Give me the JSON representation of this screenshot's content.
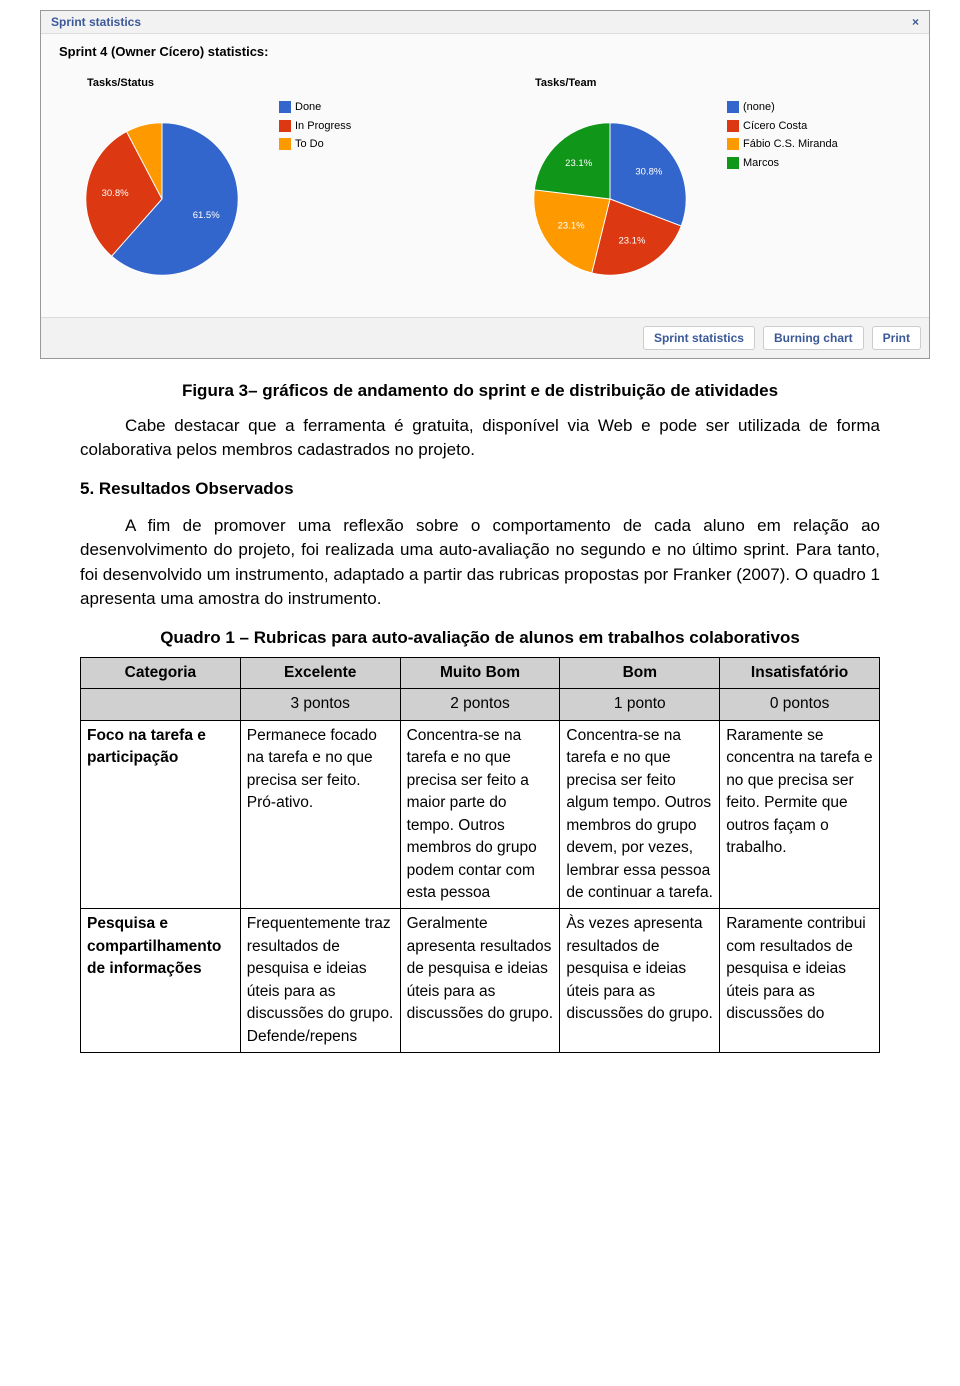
{
  "screenshot": {
    "header_title": "Sprint statistics",
    "close_glyph": "×",
    "subtitle": "Sprint 4 (Owner Cícero) statistics:",
    "chart1": {
      "title": "Tasks/Status",
      "type": "pie",
      "slices": [
        {
          "label": "Done",
          "value": 61.5,
          "color": "#3366cc",
          "text": "61.5%"
        },
        {
          "label": "In Progress",
          "value": 30.8,
          "color": "#dc3912",
          "text": "30.8%"
        },
        {
          "label": "To Do",
          "value": 7.7,
          "color": "#ff9900",
          "text": ""
        }
      ],
      "legend": [
        {
          "label": "Done",
          "color": "#3366cc"
        },
        {
          "label": "In Progress",
          "color": "#dc3912"
        },
        {
          "label": "To Do",
          "color": "#ff9900"
        }
      ]
    },
    "chart2": {
      "title": "Tasks/Team",
      "type": "pie",
      "slices": [
        {
          "label": "(none)",
          "value": 30.8,
          "color": "#3366cc",
          "text": "30.8%"
        },
        {
          "label": "Cícero Costa",
          "value": 23.1,
          "color": "#dc3912",
          "text": "23.1%"
        },
        {
          "label": "Fábio C.S. Miranda",
          "value": 23.1,
          "color": "#ff9900",
          "text": "23.1%"
        },
        {
          "label": "Marcos",
          "value": 23.1,
          "color": "#109618",
          "text": "23.1%"
        }
      ],
      "legend": [
        {
          "label": "(none)",
          "color": "#3366cc"
        },
        {
          "label": "Cícero Costa",
          "color": "#dc3912"
        },
        {
          "label": "Fábio C.S. Miranda",
          "color": "#ff9900"
        },
        {
          "label": "Marcos",
          "color": "#109618"
        }
      ]
    },
    "footer_buttons": [
      "Sprint statistics",
      "Burning chart",
      "Print"
    ]
  },
  "doc": {
    "fig_caption": "Figura 3– gráficos de andamento do sprint e de distribuição de atividades",
    "para1": "Cabe destacar que a ferramenta é gratuita, disponível via Web e pode ser utilizada de forma colaborativa pelos membros cadastrados no projeto.",
    "section_head": "5. Resultados Observados",
    "para2": "A fim de promover uma reflexão sobre o comportamento de cada aluno em relação ao desenvolvimento do projeto, foi realizada uma auto-avaliação no segundo e no último sprint. Para tanto, foi desenvolvido um instrumento, adaptado a partir das rubricas propostas por Franker (2007). O quadro 1 apresenta uma amostra do instrumento.",
    "table_caption": "Quadro 1 – Rubricas para auto-avaliação de alunos em trabalhos colaborativos",
    "table": {
      "headers": [
        "Categoria",
        "Excelente",
        "Muito Bom",
        "Bom",
        "Insatisfatório"
      ],
      "points": [
        "",
        "3 pontos",
        "2 pontos",
        "1 ponto",
        "0 pontos"
      ],
      "rows": [
        {
          "cat": "Foco na tarefa e  participação",
          "cells": [
            "Permanece focado na tarefa e no que precisa ser feito. Pró-ativo.",
            "Concentra-se na tarefa e no que precisa ser feito a maior parte do tempo. Outros membros do grupo podem contar com esta pessoa",
            "Concentra-se na tarefa e no que precisa ser feito algum tempo. Outros membros do grupo devem, por vezes, lembrar essa pessoa de continuar a tarefa.",
            "Raramente se concentra na tarefa e no que precisa ser feito. Permite que outros façam o trabalho."
          ]
        },
        {
          "cat": "Pesquisa e compartilhamento de informações",
          "cells": [
            "Frequentemente traz resultados de pesquisa e ideias úteis para as discussões do grupo. Defende/repens",
            "Geralmente apresenta resultados de pesquisa e ideias úteis para as discussões do grupo.",
            "Às vezes apresenta resultados de pesquisa e ideias úteis para as discussões do grupo.",
            "Raramente contribui com resultados de pesquisa e ideias úteis para as discussões do"
          ]
        }
      ]
    }
  }
}
